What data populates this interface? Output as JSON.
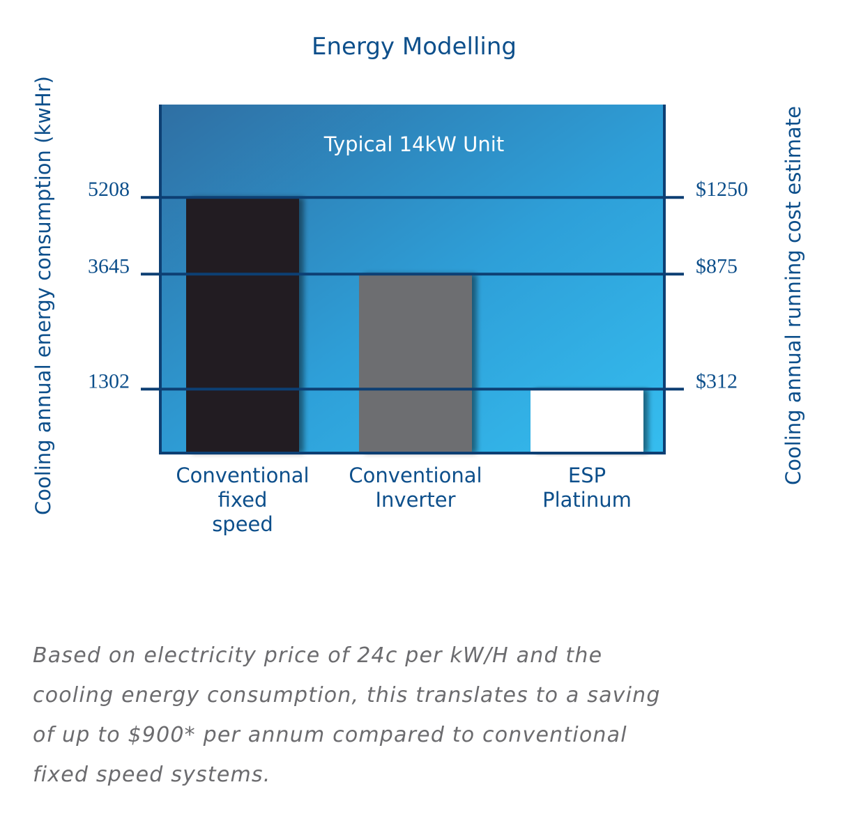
{
  "chart_data": {
    "type": "bar",
    "title": "Energy Modelling",
    "subtitle": "Typical 14kW Unit",
    "ylabel": "Cooling annual energy consumption (kwHr)",
    "y2label": "Cooling annual running cost estimate",
    "categories": [
      [
        "Conventional",
        "fixed",
        "speed"
      ],
      [
        "Conventional",
        "Inverter"
      ],
      [
        "ESP",
        "Platinum"
      ]
    ],
    "values": [
      5208,
      3645,
      1302
    ],
    "left_ticks": [
      "5208",
      "3645",
      "1302"
    ],
    "right_ticks": [
      "$1250",
      "$875",
      "$312"
    ],
    "cost_values": [
      1250,
      875,
      312
    ],
    "bar_colors": [
      "#231f20",
      "#6d6e71",
      "#ffffff"
    ],
    "ylim": [
      0,
      7100
    ],
    "grid": false,
    "colors": {
      "text": "#0d4f8b",
      "line": "#0d3f73",
      "bg_dark": "#2f6fa3",
      "bg_light": "#33b8ec"
    }
  },
  "caption": "Based on electricity price of 24c per kW/H and the\ncooling energy consumption, this translates to a saving\nof up to $900* per annum compared to conventional\nfixed speed systems."
}
